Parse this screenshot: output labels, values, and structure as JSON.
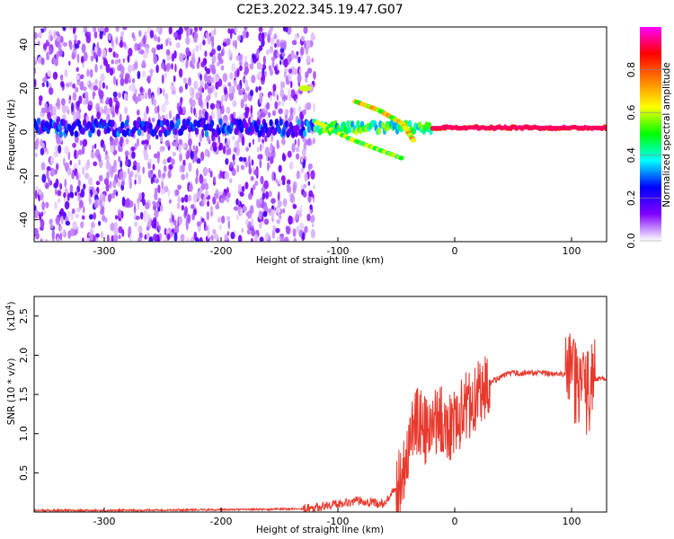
{
  "title": "C2E3.2022.345.19.47.G07",
  "chart_data": [
    {
      "type": "heatmap",
      "xlabel": "Height of straight line (km)",
      "ylabel": "Frequency (Hz)",
      "xlim": [
        -360,
        130
      ],
      "ylim": [
        -50,
        48
      ],
      "xticks": [
        -300,
        -200,
        -100,
        0,
        100
      ],
      "yticks": [
        -40,
        -20,
        0,
        20,
        40
      ],
      "colorbar": {
        "label": "Normalized spectral amplitude",
        "range": [
          0,
          1
        ],
        "ticks": [
          "0.0",
          "0.2",
          "0.4",
          "0.6",
          "0.8"
        ],
        "colors": [
          "#ffffff",
          "#8000ff",
          "#0000ff",
          "#00ffff",
          "#00ff00",
          "#ffff00",
          "#ff8000",
          "#ff0000",
          "#ff00ff"
        ]
      },
      "features": [
        {
          "name": "noise",
          "x_range": [
            -360,
            -120
          ],
          "y_range": [
            -50,
            48
          ],
          "amplitude": 0.1
        },
        {
          "name": "carrier",
          "x_range": [
            -360,
            130
          ],
          "y": 2,
          "amplitude": 0.9
        },
        {
          "name": "upper-branch",
          "x": [
            -85,
            -65,
            -45,
            -35
          ],
          "y": [
            14,
            10,
            4,
            -4
          ],
          "amplitude": 0.7
        },
        {
          "name": "lower-branch",
          "x": [
            -120,
            -90,
            -65,
            -45
          ],
          "y": [
            5,
            -3,
            -8,
            -12
          ],
          "amplitude": 0.6
        },
        {
          "name": "blob",
          "x": -128,
          "y": 20,
          "amplitude": 0.6
        }
      ]
    },
    {
      "type": "line",
      "xlabel": "Height of straight line (km)",
      "ylabel": "SNR (10 * v/v)",
      "yscale_label": "(x10",
      "yscale_exp": "4",
      "xlim": [
        -360,
        130
      ],
      "ylim": [
        0,
        2.75
      ],
      "xticks": [
        -300,
        -200,
        -100,
        0,
        100
      ],
      "yticks": [
        "0.5",
        "1.0",
        "1.5",
        "2.0",
        "2.5"
      ],
      "color": "#e8392d",
      "x": [
        -360,
        -300,
        -200,
        -130,
        -110,
        -95,
        -80,
        -70,
        -60,
        -50,
        -45,
        -40,
        -35,
        -30,
        -25,
        -20,
        -15,
        -10,
        -5,
        0,
        5,
        10,
        20,
        30,
        40,
        50,
        60,
        70,
        80,
        90,
        95,
        100,
        105,
        110,
        115,
        120,
        130
      ],
      "y": [
        0.02,
        0.02,
        0.03,
        0.04,
        0.08,
        0.12,
        0.15,
        0.12,
        0.1,
        0.3,
        0.5,
        0.8,
        1.1,
        1.2,
        1.0,
        1.05,
        1.2,
        1.15,
        1.1,
        1.15,
        1.25,
        1.35,
        1.5,
        1.65,
        1.73,
        1.77,
        1.77,
        1.78,
        1.76,
        1.78,
        1.75,
        1.72,
        1.6,
        1.5,
        1.55,
        1.7,
        1.7
      ]
    }
  ]
}
